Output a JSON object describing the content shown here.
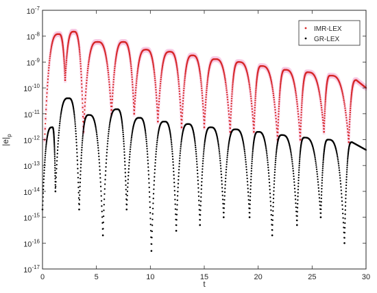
{
  "chart_data": {
    "type": "scatter",
    "title": "",
    "xlabel": "t",
    "ylabel": "|e|",
    "ylabel_subscript": "p",
    "xlim": [
      0,
      30
    ],
    "ylim_log10": [
      -17,
      -7
    ],
    "y_scale": "log",
    "x_ticks": [
      "0",
      "5",
      "10",
      "15",
      "20",
      "25",
      "30"
    ],
    "y_tick_base": "10",
    "y_tick_exponents": [
      "-17",
      "-16",
      "-15",
      "-14",
      "-13",
      "-12",
      "-11",
      "-10",
      "-9",
      "-8",
      "-7"
    ],
    "grid": false,
    "legend_position": "top-right",
    "series": [
      {
        "name": "IMR-LEX",
        "color": "#d62728",
        "halo_color": "#f7c6e2",
        "marker": "dot",
        "offset_log10": 0,
        "peaks": [
          {
            "t": 1.5,
            "value": 1.2e-08
          },
          {
            "t": 2.9,
            "value": 1.5e-08
          },
          {
            "t": 5.1,
            "value": 6e-09
          },
          {
            "t": 7.5,
            "value": 6e-09
          },
          {
            "t": 9.6,
            "value": 3e-09
          },
          {
            "t": 11.8,
            "value": 2.5e-09
          },
          {
            "t": 13.9,
            "value": 1.8e-09
          },
          {
            "t": 16.0,
            "value": 1.3e-09
          },
          {
            "t": 18.2,
            "value": 1e-09
          },
          {
            "t": 20.3,
            "value": 7e-10
          },
          {
            "t": 22.5,
            "value": 5e-10
          },
          {
            "t": 24.6,
            "value": 4e-10
          },
          {
            "t": 26.7,
            "value": 3e-10
          },
          {
            "t": 29.1,
            "value": 2e-10
          },
          {
            "t": 30.0,
            "value": 1e-10
          }
        ],
        "minima": [
          {
            "t": 0.2,
            "value": 1e-12
          },
          {
            "t": 2.1,
            "value": 2e-10
          },
          {
            "t": 3.8,
            "value": 2e-12
          },
          {
            "t": 6.4,
            "value": 1e-11
          },
          {
            "t": 8.5,
            "value": 1e-11
          },
          {
            "t": 10.7,
            "value": 5e-12
          },
          {
            "t": 12.9,
            "value": 3e-12
          },
          {
            "t": 15.0,
            "value": 3e-12
          },
          {
            "t": 17.4,
            "value": 2e-12
          },
          {
            "t": 19.6,
            "value": 2e-12
          },
          {
            "t": 21.8,
            "value": 1e-12
          },
          {
            "t": 23.9,
            "value": 1e-12
          },
          {
            "t": 26.1,
            "value": 2e-12
          },
          {
            "t": 28.4,
            "value": 8e-13
          }
        ]
      },
      {
        "name": "GR-LEX",
        "color": "#000000",
        "marker": "dot",
        "offset_log10": 0,
        "peaks": [
          {
            "t": 0.9,
            "value": 3e-12
          },
          {
            "t": 2.4,
            "value": 4e-11
          },
          {
            "t": 4.3,
            "value": 9e-12
          },
          {
            "t": 6.9,
            "value": 1.5e-11
          },
          {
            "t": 9.0,
            "value": 7e-12
          },
          {
            "t": 11.3,
            "value": 5e-12
          },
          {
            "t": 13.5,
            "value": 4e-12
          },
          {
            "t": 15.6,
            "value": 3e-12
          },
          {
            "t": 17.9,
            "value": 2.5e-12
          },
          {
            "t": 20.0,
            "value": 2e-12
          },
          {
            "t": 22.2,
            "value": 1.5e-12
          },
          {
            "t": 24.3,
            "value": 1.2e-12
          },
          {
            "t": 26.5,
            "value": 1e-12
          },
          {
            "t": 28.7,
            "value": 8e-13
          },
          {
            "t": 30.0,
            "value": 4e-13
          }
        ],
        "minima": [
          {
            "t": 0.0,
            "value": 2e-15
          },
          {
            "t": 1.2,
            "value": 1e-14
          },
          {
            "t": 3.4,
            "value": 2e-15
          },
          {
            "t": 5.6,
            "value": 2e-16
          },
          {
            "t": 7.8,
            "value": 2e-15
          },
          {
            "t": 10.1,
            "value": 5e-17
          },
          {
            "t": 12.4,
            "value": 3e-16
          },
          {
            "t": 14.6,
            "value": 5e-16
          },
          {
            "t": 16.8,
            "value": 1e-15
          },
          {
            "t": 19.2,
            "value": 1e-15
          },
          {
            "t": 21.3,
            "value": 2e-16
          },
          {
            "t": 23.6,
            "value": 5e-16
          },
          {
            "t": 25.8,
            "value": 1e-15
          },
          {
            "t": 28.0,
            "value": 1e-16
          }
        ]
      }
    ]
  }
}
